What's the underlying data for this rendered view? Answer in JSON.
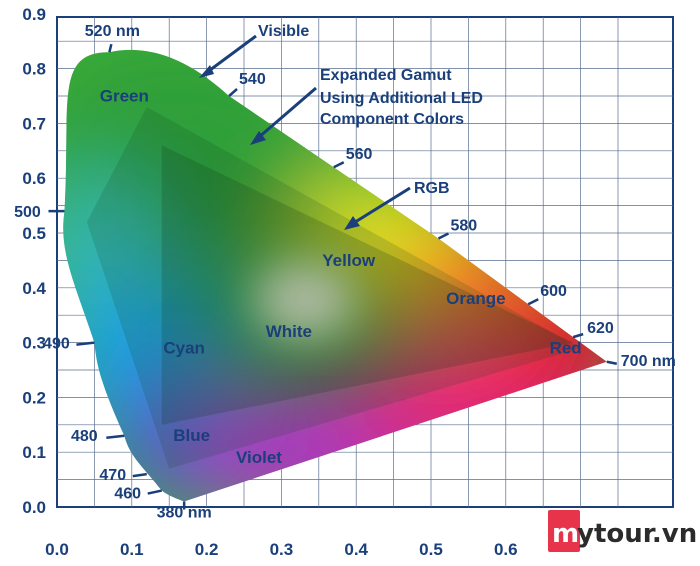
{
  "chart_data": {
    "type": "chromaticity-diagram",
    "x_ticks": [
      "0.0",
      "0.1",
      "0.2",
      "0.3",
      "0.4",
      "0.5",
      "0.6"
    ],
    "y_ticks": [
      "0.0",
      "0.1",
      "0.2",
      "0.3",
      "0.4",
      "0.5",
      "0.6",
      "0.7",
      "0.8",
      "0.9"
    ],
    "xlim": [
      0,
      0.8
    ],
    "ylim": [
      0,
      0.9
    ],
    "grid": true,
    "spectral_locus": [
      {
        "label": "380 nm",
        "x": 0.17,
        "y": 0.01
      },
      {
        "label": "460",
        "x": 0.14,
        "y": 0.03
      },
      {
        "label": "470",
        "x": 0.12,
        "y": 0.06
      },
      {
        "label": "480",
        "x": 0.09,
        "y": 0.13
      },
      {
        "label": "490",
        "x": 0.05,
        "y": 0.3
      },
      {
        "label": "500",
        "x": 0.01,
        "y": 0.54
      },
      {
        "label": "520 nm",
        "x": 0.07,
        "y": 0.83
      },
      {
        "label": "540",
        "x": 0.23,
        "y": 0.75
      },
      {
        "label": "560",
        "x": 0.37,
        "y": 0.62
      },
      {
        "label": "580",
        "x": 0.51,
        "y": 0.49
      },
      {
        "label": "600",
        "x": 0.63,
        "y": 0.37
      },
      {
        "label": "620",
        "x": 0.69,
        "y": 0.31
      },
      {
        "label": "700 nm",
        "x": 0.735,
        "y": 0.265
      }
    ],
    "expanded_gamut": [
      [
        0.12,
        0.73
      ],
      [
        0.04,
        0.52
      ],
      [
        0.15,
        0.07
      ],
      [
        0.7,
        0.29
      ]
    ],
    "rgb_gamut": [
      [
        0.14,
        0.66
      ],
      [
        0.14,
        0.15
      ],
      [
        0.69,
        0.3
      ]
    ],
    "regions": [
      {
        "label": "Green",
        "x": 0.09,
        "y": 0.74
      },
      {
        "label": "Yellow",
        "x": 0.39,
        "y": 0.44
      },
      {
        "label": "Orange",
        "x": 0.56,
        "y": 0.37
      },
      {
        "label": "White",
        "x": 0.31,
        "y": 0.31
      },
      {
        "label": "Cyan",
        "x": 0.17,
        "y": 0.28
      },
      {
        "label": "Red",
        "x": 0.68,
        "y": 0.28
      },
      {
        "label": "Blue",
        "x": 0.18,
        "y": 0.12
      },
      {
        "label": "Violet",
        "x": 0.27,
        "y": 0.08
      }
    ],
    "annotations": [
      {
        "lines": [
          "Visible"
        ]
      },
      {
        "lines": [
          "Expanded Gamut",
          "Using Additional LED",
          "Component Colors"
        ]
      },
      {
        "lines": [
          "RGB"
        ]
      }
    ]
  },
  "watermark": {
    "text": "mytour.vn",
    "first_letter": "m",
    "rest": "ytour.vn",
    "badge_color": "#e8344a"
  }
}
